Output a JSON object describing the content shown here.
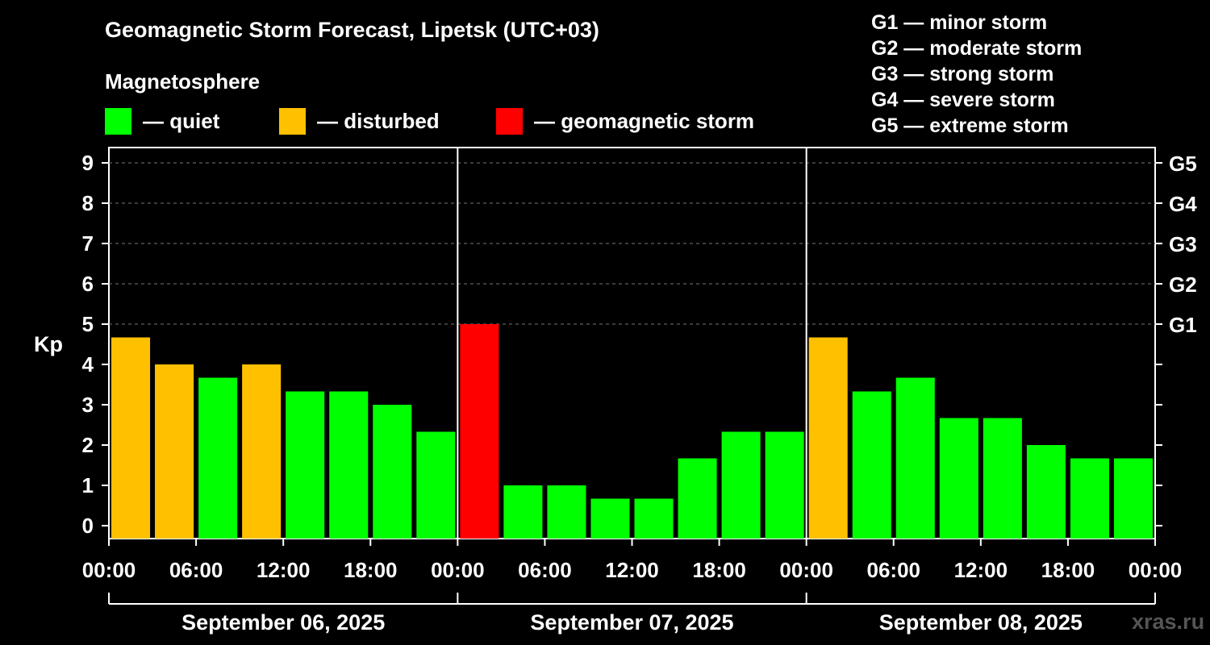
{
  "header": {
    "title": "Geomagnetic Storm Forecast, Lipetsk (UTC+03)",
    "magnetosphere_heading": "Magnetosphere"
  },
  "legend": [
    {
      "label": "— quiet",
      "color": "#00ff00"
    },
    {
      "label": "— disturbed",
      "color": "#ffc000"
    },
    {
      "label": "— geomagnetic storm",
      "color": "#ff0000"
    }
  ],
  "storm_levels": [
    "G1 — minor storm",
    "G2 — moderate storm",
    "G3 — strong storm",
    "G4 — severe storm",
    "G5 — extreme storm"
  ],
  "watermark": "xras.ru",
  "chart_data": {
    "type": "bar",
    "ylabel": "Kp",
    "ylim": [
      0,
      9
    ],
    "y_ticks": [
      "0",
      "1",
      "2",
      "3",
      "4",
      "5",
      "6",
      "7",
      "8",
      "9"
    ],
    "right_ticks": [
      {
        "kp": 5,
        "label": "G1"
      },
      {
        "kp": 6,
        "label": "G2"
      },
      {
        "kp": 7,
        "label": "G3"
      },
      {
        "kp": 8,
        "label": "G4"
      },
      {
        "kp": 9,
        "label": "G5"
      }
    ],
    "grid": "horizontal dashed at Kp 5-9",
    "x_ticks": [
      "00:00",
      "06:00",
      "12:00",
      "18:00",
      "00:00",
      "06:00",
      "12:00",
      "18:00",
      "00:00",
      "06:00",
      "12:00",
      "18:00",
      "00:00"
    ],
    "days": [
      "September 06, 2025",
      "September 07, 2025",
      "September 08, 2025"
    ],
    "intervals_per_day": 8,
    "colors": {
      "quiet": "#00ff00",
      "disturbed": "#ffc000",
      "storm": "#ff0000"
    },
    "values": [
      4.67,
      4.0,
      3.67,
      4.0,
      3.33,
      3.33,
      3.0,
      2.33,
      5.0,
      1.0,
      1.0,
      0.67,
      0.67,
      1.67,
      2.33,
      2.33,
      4.67,
      3.33,
      3.67,
      2.67,
      2.67,
      2.0,
      1.67,
      1.67
    ],
    "status": [
      "disturbed",
      "disturbed",
      "quiet",
      "disturbed",
      "quiet",
      "quiet",
      "quiet",
      "quiet",
      "storm",
      "quiet",
      "quiet",
      "quiet",
      "quiet",
      "quiet",
      "quiet",
      "quiet",
      "disturbed",
      "quiet",
      "quiet",
      "quiet",
      "quiet",
      "quiet",
      "quiet",
      "quiet"
    ]
  }
}
